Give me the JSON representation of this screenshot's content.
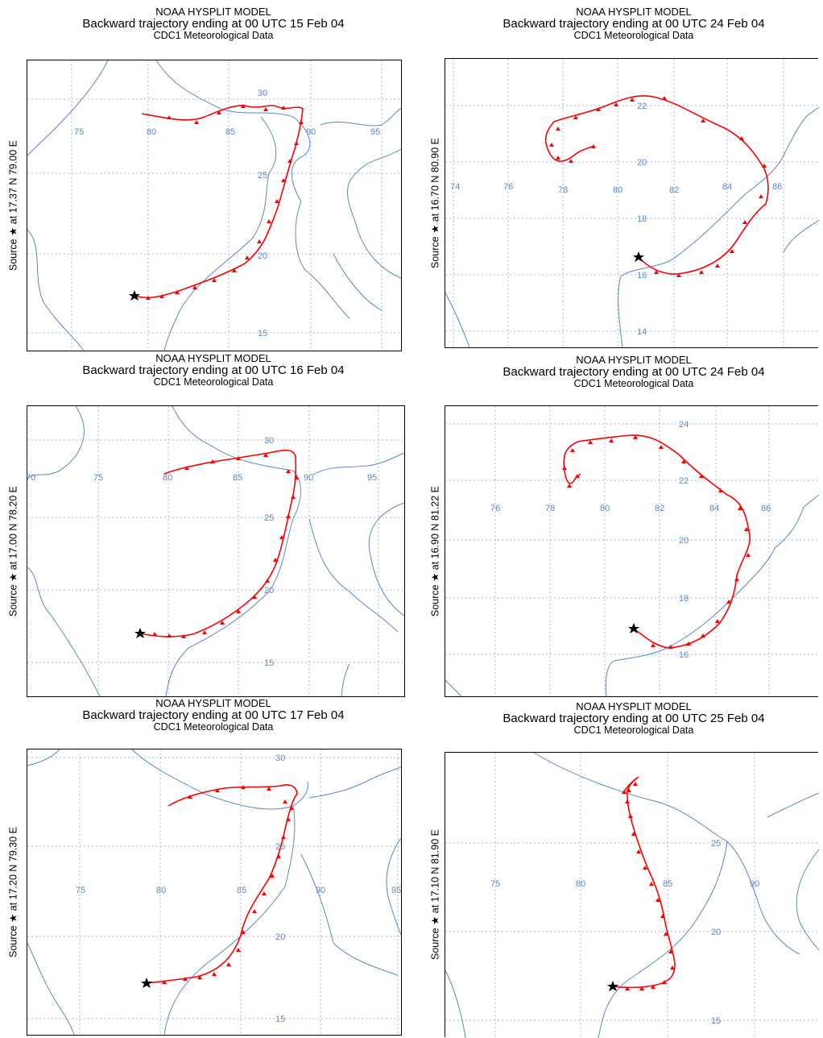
{
  "panels": [
    {
      "title_model": "NOAA HYSPLIT MODEL",
      "title_traj": "Backward trajectory ending at 00 UTC 15 Feb 04",
      "title_met": "CDC1 Meteorological Data",
      "source_label": "Source ★ at   17.37 N   79.00 E",
      "lon_labels": [
        {
          "text": "75"
        },
        {
          "text": "80"
        },
        {
          "text": "85"
        },
        {
          "text": "90"
        },
        {
          "text": "95"
        }
      ],
      "lat_labels": [
        {
          "text": "30"
        },
        {
          "text": "25"
        },
        {
          "text": "20"
        },
        {
          "text": "15"
        }
      ]
    },
    {
      "title_model": "NOAA HYSPLIT MODEL",
      "title_traj": "Backward trajectory ending at 00 UTC 24 Feb 04",
      "title_met": "CDC1 Meteorological Data",
      "source_label": "Source ★ at   16.70 N   80.90 E",
      "lon_labels": [
        {
          "text": "74"
        },
        {
          "text": "76"
        },
        {
          "text": "78"
        },
        {
          "text": "80"
        },
        {
          "text": "82"
        },
        {
          "text": "84"
        },
        {
          "text": "86"
        }
      ],
      "lat_labels": [
        {
          "text": "22"
        },
        {
          "text": "20"
        },
        {
          "text": "18"
        },
        {
          "text": "16"
        },
        {
          "text": "14"
        }
      ]
    },
    {
      "title_model": "NOAA HYSPLIT MODEL",
      "title_traj": "Backward trajectory ending at 00 UTC 16 Feb 04",
      "title_met": "CDC1 Meteorological Data",
      "source_label": "Source ★ at   17.00 N   78.20 E",
      "lon_labels": [
        {
          "text": "70"
        },
        {
          "text": "75"
        },
        {
          "text": "80"
        },
        {
          "text": "85"
        },
        {
          "text": "90"
        },
        {
          "text": "95"
        }
      ],
      "lat_labels": [
        {
          "text": "30"
        },
        {
          "text": "25"
        },
        {
          "text": "20"
        },
        {
          "text": "15"
        }
      ]
    },
    {
      "title_model": "NOAA HYSPLIT MODEL",
      "title_traj": "Backward trajectory ending at 00 UTC 24 Feb 04",
      "title_met": "CDC1 Meteorological Data",
      "source_label": "Source ★ at   16.90 N   81.22 E",
      "lon_labels": [
        {
          "text": "76"
        },
        {
          "text": "78"
        },
        {
          "text": "80"
        },
        {
          "text": "82"
        },
        {
          "text": "84"
        },
        {
          "text": "86"
        }
      ],
      "lat_labels": [
        {
          "text": "24"
        },
        {
          "text": "22"
        },
        {
          "text": "20"
        },
        {
          "text": "18"
        },
        {
          "text": "16"
        }
      ]
    },
    {
      "title_model": "NOAA HYSPLIT MODEL",
      "title_traj": "Backward trajectory ending at 00 UTC 17 Feb 04",
      "title_met": "CDC1 Meteorological Data",
      "source_label": "Source ★ at   17.20 N   79.30 E",
      "lon_labels": [
        {
          "text": "75"
        },
        {
          "text": "80"
        },
        {
          "text": "85"
        },
        {
          "text": "90"
        },
        {
          "text": "95"
        }
      ],
      "lat_labels": [
        {
          "text": "30"
        },
        {
          "text": "25"
        },
        {
          "text": "20"
        },
        {
          "text": "15"
        }
      ]
    },
    {
      "title_model": "NOAA HYSPLIT MODEL",
      "title_traj": "Backward trajectory ending at 00 UTC 25 Feb 04",
      "title_met": "CDC1 Meteorological Data",
      "source_label": "Source ★ at   17.10 N   81.90 E",
      "lon_labels": [
        {
          "text": "75"
        },
        {
          "text": "80"
        },
        {
          "text": "85"
        },
        {
          "text": "90"
        }
      ],
      "lat_labels": [
        {
          "text": "25"
        },
        {
          "text": "20"
        },
        {
          "text": "15"
        }
      ]
    }
  ],
  "colors": {
    "trajectory": "#ff0000",
    "coastline": "#5f86c8",
    "gridline": "#7fa9d6",
    "source_marker": "#000000"
  },
  "icons": {
    "source": "star-icon",
    "trajectory_point": "triangle-icon"
  }
}
